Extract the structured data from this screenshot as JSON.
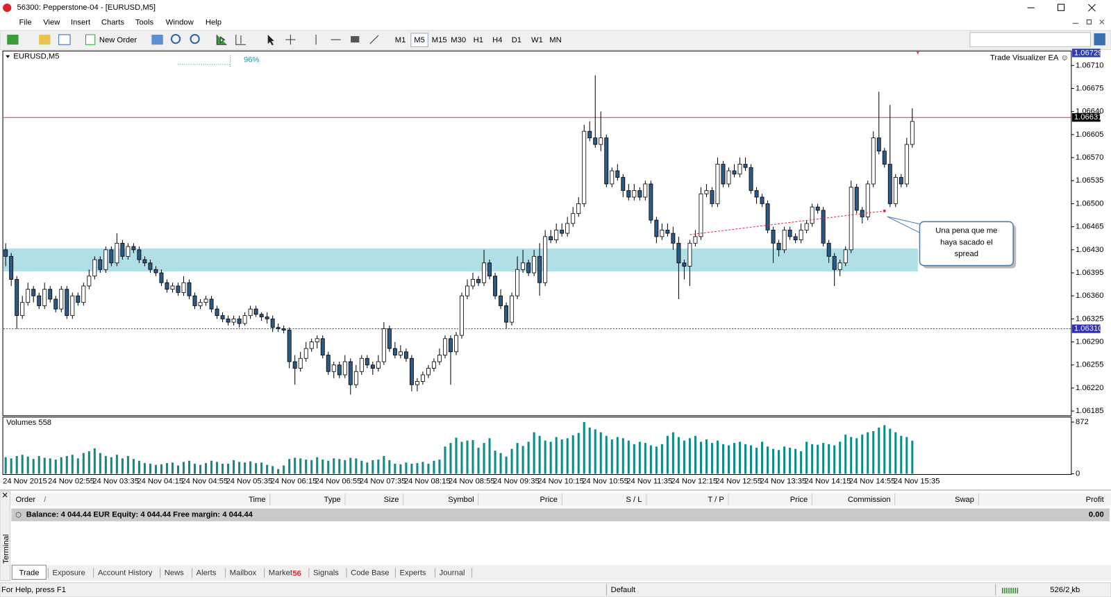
{
  "window": {
    "title": "56300: Pepperstone-04 - [EURUSD,M5]"
  },
  "menu": [
    "File",
    "View",
    "Insert",
    "Charts",
    "Tools",
    "Window",
    "Help"
  ],
  "toolbar": {
    "new_order": "New Order",
    "timeframes": [
      "M1",
      "M5",
      "M15",
      "M30",
      "H1",
      "H4",
      "D1",
      "W1",
      "MN"
    ],
    "active_timeframe": "M5"
  },
  "chart": {
    "type": "candlestick",
    "symbol": "EURUSD,M5",
    "progress": "96%",
    "ea": "Trade Visualizer EA",
    "smiley": "☺",
    "ylim": [
      1.06179,
      1.06732
    ],
    "yticks": [
      {
        "value": 1.0671,
        "label": "1.06710"
      },
      1.06675,
      {
        "value": 1.0664,
        "label": "1.06640"
      },
      1.06605,
      {
        "value": 1.0657,
        "label": "1.06570"
      },
      1.06535,
      {
        "value": 1.065,
        "label": "1.06500"
      },
      1.06465,
      {
        "value": 1.0643,
        "label": "1.06430"
      },
      1.06395,
      {
        "value": 1.0636,
        "label": "1.06360"
      },
      1.06325,
      {
        "value": 1.0629,
        "label": "1.06290"
      },
      1.06255,
      {
        "value": 1.0622,
        "label": "1.06220"
      },
      1.06185
    ],
    "time_labels": [
      "24 Nov 2015",
      "24 Nov 02:55",
      "24 Nov 03:35",
      "24 Nov 04:15",
      "24 Nov 04:55",
      "24 Nov 05:35",
      "24 Nov 06:15",
      "24 Nov 06:55",
      "24 Nov 07:35",
      "24 Nov 08:15",
      "24 Nov 08:55",
      "24 Nov 09:35",
      "24 Nov 10:15",
      "24 Nov 10:55",
      "24 Nov 11:35",
      "24 Nov 12:15",
      "24 Nov 12:55",
      "24 Nov 13:35",
      "24 Nov 14:15",
      "24 Nov 14:55",
      "24 Nov 15:35"
    ],
    "bull_color": "#ffffff",
    "bear_color": "#2d5986",
    "wick_color": "#000000",
    "open": [
      1.0643,
      1.0642,
      1.06385,
      1.0633,
      1.0635,
      1.0637,
      1.0636,
      1.06345,
      1.0637,
      1.06355,
      1.0634,
      1.0637,
      1.0633,
      1.0636,
      1.0635,
      1.06375,
      1.0639,
      1.06415,
      1.064,
      1.0643,
      1.0641,
      1.0644,
      1.0642,
      1.06435,
      1.0643,
      1.06415,
      1.0641,
      1.064,
      1.06395,
      1.0638,
      1.0637,
      1.06375,
      1.06365,
      1.0638,
      1.0636,
      1.06345,
      1.0635,
      1.06355,
      1.0634,
      1.0633,
      1.06325,
      1.0632,
      1.06325,
      1.06318,
      1.0633,
      1.0634,
      1.06332,
      1.06328,
      1.06325,
      1.06312,
      1.0631,
      1.06308,
      1.0626,
      1.0625,
      1.06265,
      1.0628,
      1.0629,
      1.06295,
      1.0627,
      1.06245,
      1.06255,
      1.0624,
      1.0626,
      1.06225,
      1.06245,
      1.06265,
      1.06255,
      1.0625,
      1.0626,
      1.0631,
      1.0628,
      1.0627,
      1.06275,
      1.06265,
      1.06225,
      1.0623,
      1.0624,
      1.0625,
      1.0626,
      1.0627,
      1.06295,
      1.06275,
      1.063,
      1.0636,
      1.06375,
      1.06385,
      1.0638,
      1.0641,
      1.0639,
      1.0636,
      1.06345,
      1.0632,
      1.0636,
      1.064,
      1.0641,
      1.06395,
      1.0642,
      1.0638,
      1.0645,
      1.06445,
      1.0646,
      1.06455,
      1.0647,
      1.06485,
      1.065,
      1.0661,
      1.066,
      1.0659,
      1.066,
      1.0653,
      1.0655,
      1.0654,
      1.0652,
      1.0651,
      1.0652,
      1.0651,
      1.0653,
      1.06475,
      1.0645,
      1.0646,
      1.06455,
      1.0644,
      1.0641,
      1.06405,
      1.0644,
      1.0645,
      1.06515,
      1.0652,
      1.065,
      1.0656,
      1.0653,
      1.0655,
      1.06545,
      1.0656,
      1.06555,
      1.0652,
      1.0651,
      1.065,
      1.0646,
      1.0644,
      1.0643,
      1.0646,
      1.0645,
      1.06445,
      1.0646,
      1.0647,
      1.06495,
      1.0649,
      1.0644,
      1.0642,
      1.064,
      1.0641,
      1.0643,
      1.06525,
      1.0649,
      1.0648,
      1.0653,
      1.066,
      1.0658,
      1.0656,
      1.065,
      1.0654,
      1.0653,
      1.0659
    ],
    "high": [
      1.0644,
      1.06425,
      1.0639,
      1.0636,
      1.0638,
      1.06375,
      1.06365,
      1.0638,
      1.06375,
      1.0636,
      1.06375,
      1.06375,
      1.06365,
      1.06365,
      1.0638,
      1.064,
      1.0642,
      1.0642,
      1.06435,
      1.06435,
      1.06455,
      1.06445,
      1.0644,
      1.0644,
      1.06435,
      1.0642,
      1.06415,
      1.06405,
      1.064,
      1.06385,
      1.0638,
      1.0638,
      1.0639,
      1.06385,
      1.06365,
      1.06355,
      1.0636,
      1.0636,
      1.06345,
      1.06335,
      1.0633,
      1.0633,
      1.0633,
      1.06335,
      1.06345,
      1.06345,
      1.06335,
      1.06335,
      1.0633,
      1.06318,
      1.06315,
      1.06312,
      1.0627,
      1.06275,
      1.0629,
      1.06295,
      1.063,
      1.063,
      1.06275,
      1.0626,
      1.0626,
      1.0627,
      1.06265,
      1.06255,
      1.0627,
      1.0627,
      1.0626,
      1.0627,
      1.0632,
      1.06315,
      1.0629,
      1.06285,
      1.0628,
      1.0627,
      1.06235,
      1.06245,
      1.06255,
      1.06265,
      1.0628,
      1.063,
      1.063,
      1.06305,
      1.06365,
      1.06385,
      1.06395,
      1.0639,
      1.0643,
      1.06415,
      1.06395,
      1.0637,
      1.0635,
      1.06365,
      1.0642,
      1.0643,
      1.06415,
      1.0643,
      1.0644,
      1.0646,
      1.0646,
      1.0647,
      1.0647,
      1.0648,
      1.06495,
      1.0651,
      1.0662,
      1.06625,
      1.06695,
      1.0664,
      1.06605,
      1.06555,
      1.0656,
      1.06545,
      1.0653,
      1.0653,
      1.06525,
      1.06535,
      1.06535,
      1.0648,
      1.0647,
      1.0647,
      1.06465,
      1.0645,
      1.06415,
      1.06445,
      1.0646,
      1.06525,
      1.0653,
      1.06525,
      1.0657,
      1.06565,
      1.06555,
      1.0656,
      1.0657,
      1.0657,
      1.0656,
      1.06525,
      1.06515,
      1.06505,
      1.06465,
      1.06445,
      1.06465,
      1.06465,
      1.06455,
      1.0647,
      1.06475,
      1.065,
      1.065,
      1.06495,
      1.06445,
      1.06425,
      1.06415,
      1.06435,
      1.06535,
      1.0653,
      1.06495,
      1.06535,
      1.0661,
      1.0667,
      1.06585,
      1.0665,
      1.06545,
      1.06545,
      1.066,
      1.06645
    ],
    "low": [
      1.06405,
      1.06375,
      1.0631,
      1.06325,
      1.06345,
      1.0635,
      1.0634,
      1.0634,
      1.0635,
      1.06335,
      1.06335,
      1.06325,
      1.06325,
      1.06345,
      1.06345,
      1.0637,
      1.06385,
      1.06395,
      1.06395,
      1.06405,
      1.06405,
      1.06415,
      1.06415,
      1.06425,
      1.0641,
      1.06405,
      1.06395,
      1.0639,
      1.06375,
      1.06365,
      1.06365,
      1.0636,
      1.0636,
      1.06355,
      1.0634,
      1.0634,
      1.06345,
      1.06335,
      1.06325,
      1.0632,
      1.06315,
      1.06315,
      1.06312,
      1.06315,
      1.06325,
      1.06328,
      1.06322,
      1.06318,
      1.06305,
      1.06305,
      1.06303,
      1.0625,
      1.06225,
      1.06245,
      1.0626,
      1.06275,
      1.0628,
      1.06265,
      1.0624,
      1.06235,
      1.06235,
      1.06235,
      1.0621,
      1.0622,
      1.0624,
      1.0625,
      1.0624,
      1.06245,
      1.06255,
      1.06275,
      1.06265,
      1.06265,
      1.0626,
      1.06215,
      1.06215,
      1.06225,
      1.06235,
      1.06245,
      1.06255,
      1.06265,
      1.06225,
      1.0627,
      1.06295,
      1.06355,
      1.0637,
      1.06375,
      1.06375,
      1.06385,
      1.06355,
      1.0634,
      1.0631,
      1.06315,
      1.06355,
      1.06395,
      1.0639,
      1.0639,
      1.0636,
      1.06375,
      1.0644,
      1.0644,
      1.0645,
      1.0645,
      1.06465,
      1.0648,
      1.06495,
      1.06595,
      1.06585,
      1.0658,
      1.06525,
      1.06525,
      1.06535,
      1.0651,
      1.06505,
      1.06505,
      1.06505,
      1.06505,
      1.0647,
      1.0644,
      1.06445,
      1.0645,
      1.0643,
      1.06355,
      1.06385,
      1.06375,
      1.06435,
      1.06445,
      1.0651,
      1.06495,
      1.06495,
      1.06525,
      1.06525,
      1.0654,
      1.0654,
      1.0655,
      1.06515,
      1.065,
      1.06495,
      1.06455,
      1.0641,
      1.0642,
      1.06425,
      1.06445,
      1.0644,
      1.0644,
      1.06455,
      1.06465,
      1.06485,
      1.06435,
      1.0641,
      1.06375,
      1.0639,
      1.06405,
      1.06425,
      1.06485,
      1.0647,
      1.06475,
      1.06525,
      1.06575,
      1.06555,
      1.06495,
      1.06495,
      1.06525,
      1.06525,
      1.06585
    ],
    "close": [
      1.0642,
      1.06385,
      1.0633,
      1.0635,
      1.0637,
      1.0636,
      1.06345,
      1.0637,
      1.06355,
      1.0634,
      1.0637,
      1.0633,
      1.0636,
      1.0635,
      1.06375,
      1.0639,
      1.06415,
      1.064,
      1.0643,
      1.0641,
      1.0644,
      1.0642,
      1.06435,
      1.0643,
      1.06415,
      1.0641,
      1.064,
      1.06395,
      1.0638,
      1.0637,
      1.06375,
      1.06365,
      1.0638,
      1.0636,
      1.06345,
      1.0635,
      1.06355,
      1.0634,
      1.0633,
      1.06325,
      1.0632,
      1.06325,
      1.06318,
      1.0633,
      1.0634,
      1.06332,
      1.06328,
      1.06325,
      1.06312,
      1.0631,
      1.06308,
      1.0626,
      1.0625,
      1.06265,
      1.0628,
      1.0629,
      1.06295,
      1.0627,
      1.06245,
      1.06255,
      1.0624,
      1.0626,
      1.06225,
      1.06245,
      1.06265,
      1.06255,
      1.0625,
      1.0626,
      1.0631,
      1.0628,
      1.0627,
      1.06275,
      1.06265,
      1.06225,
      1.0623,
      1.0624,
      1.0625,
      1.0626,
      1.0627,
      1.06295,
      1.06275,
      1.063,
      1.0636,
      1.06375,
      1.06385,
      1.0638,
      1.0641,
      1.0639,
      1.0636,
      1.06345,
      1.0632,
      1.0636,
      1.064,
      1.0641,
      1.06395,
      1.0642,
      1.0638,
      1.0645,
      1.06445,
      1.0646,
      1.06455,
      1.0647,
      1.06485,
      1.065,
      1.0661,
      1.066,
      1.0659,
      1.066,
      1.0653,
      1.0655,
      1.0654,
      1.0652,
      1.0651,
      1.0652,
      1.0651,
      1.0653,
      1.06475,
      1.0645,
      1.0646,
      1.06455,
      1.0644,
      1.0641,
      1.06405,
      1.0644,
      1.0645,
      1.06515,
      1.0652,
      1.065,
      1.0656,
      1.0653,
      1.0655,
      1.06545,
      1.0656,
      1.06555,
      1.0652,
      1.0651,
      1.065,
      1.0646,
      1.0644,
      1.0643,
      1.0646,
      1.0645,
      1.06445,
      1.0646,
      1.0647,
      1.06495,
      1.0649,
      1.0644,
      1.0642,
      1.064,
      1.0641,
      1.0643,
      1.06525,
      1.0649,
      1.0648,
      1.0653,
      1.066,
      1.0658,
      1.0656,
      1.065,
      1.0654,
      1.0653,
      1.0659,
      1.06625
    ],
    "zone": {
      "from": 1.06397,
      "to": 1.06432,
      "color": "#b0dfe5"
    },
    "lines": [
      {
        "value": 1.06631,
        "color": "#e0313b",
        "style": "solid"
      },
      {
        "value": 1.0631,
        "label": "1.06310",
        "color": "#2f2fb5",
        "style": "dotted"
      }
    ],
    "ask_marker": {
      "value": 1.06729,
      "color": "#2f3fae"
    },
    "trendline": {
      "from_index": 123,
      "to_index": 158,
      "from": 1.06453,
      "to": 1.06489,
      "color": "#e0313b"
    },
    "callout": [
      "Una pena que me",
      "haya sacado el",
      "spread"
    ]
  },
  "volumes": {
    "label": "Volumes 558",
    "color": "#0e8c87",
    "ylim": [
      0,
      872
    ],
    "yticks": [
      872,
      0
    ],
    "values": [
      280,
      260,
      300,
      320,
      290,
      250,
      300,
      270,
      260,
      240,
      280,
      300,
      320,
      260,
      350,
      380,
      430,
      350,
      300,
      280,
      320,
      260,
      300,
      250,
      220,
      180,
      170,
      150,
      160,
      180,
      190,
      140,
      200,
      220,
      170,
      150,
      180,
      220,
      200,
      170,
      170,
      230,
      200,
      190,
      210,
      180,
      190,
      150,
      130,
      80,
      140,
      250,
      270,
      260,
      240,
      230,
      280,
      240,
      220,
      260,
      250,
      230,
      270,
      260,
      220,
      190,
      230,
      240,
      300,
      230,
      170,
      160,
      190,
      170,
      180,
      200,
      170,
      220,
      240,
      460,
      520,
      610,
      540,
      560,
      570,
      440,
      520,
      600,
      390,
      350,
      290,
      420,
      520,
      470,
      540,
      700,
      640,
      560,
      540,
      620,
      580,
      600,
      650,
      690,
      872,
      780,
      750,
      700,
      640,
      580,
      620,
      600,
      560,
      500,
      540,
      520,
      480,
      460,
      500,
      640,
      700,
      620,
      560,
      600,
      640,
      540,
      580,
      520,
      560,
      500,
      480,
      520,
      540,
      500,
      480,
      440,
      540,
      460,
      420,
      400,
      460,
      440,
      420,
      380,
      540,
      500,
      490,
      520,
      500,
      480,
      540,
      660,
      620,
      600,
      660,
      700,
      720,
      780,
      820,
      760,
      700,
      640,
      620,
      558
    ]
  },
  "terminal": {
    "side": "Terminal",
    "columns": [
      "Order",
      "Time",
      "Type",
      "Size",
      "Symbol",
      "Price",
      "S / L",
      "T / P",
      "Price",
      "Commission",
      "Swap",
      "Profit"
    ],
    "balance": "Balance: 4 044.44 EUR  Equity: 4 044.44  Free margin: 4 044.44",
    "profit": "0.00",
    "tabs": [
      "Trade",
      "Exposure",
      "Account History",
      "News",
      "Alerts",
      "Mailbox",
      "Market",
      "Signals",
      "Code Base",
      "Experts",
      "Journal"
    ],
    "market_badge": "56",
    "active_tab": "Trade"
  },
  "status": {
    "help": "For Help, press F1",
    "profile": "Default",
    "traffic": "526/2 kb"
  }
}
